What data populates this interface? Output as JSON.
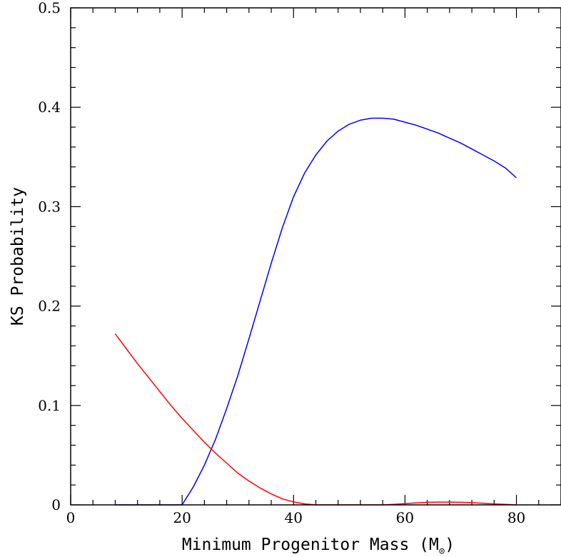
{
  "chart_data": {
    "type": "line",
    "title": "",
    "xlabel": "Minimum Progenitor Mass (M",
    "xlabel_unit_symbol": "⊙",
    "xlabel_close": ")",
    "ylabel": "KS Probability",
    "xlim": [
      0,
      88
    ],
    "ylim": [
      0,
      0.5
    ],
    "x_ticks": [
      0,
      20,
      40,
      60,
      80
    ],
    "x_tick_labels": [
      "0",
      "20",
      "40",
      "60",
      "80"
    ],
    "x_minor_step": 4,
    "y_ticks": [
      0,
      0.1,
      0.2,
      0.3,
      0.4,
      0.5
    ],
    "y_tick_labels": [
      "0",
      "0.1",
      "0.2",
      "0.3",
      "0.4",
      "0.5"
    ],
    "y_minor_step": 0.02,
    "grid": false,
    "series": [
      {
        "color": "#0000ff",
        "x": [
          8,
          12,
          16,
          20,
          22,
          24,
          26,
          28,
          30,
          32,
          34,
          36,
          38,
          40,
          42,
          44,
          46,
          48,
          50,
          52,
          54,
          56,
          58,
          60,
          62,
          64,
          66,
          68,
          70,
          72,
          74,
          76,
          78,
          80
        ],
        "y": [
          0,
          0,
          0,
          0,
          0.018,
          0.04,
          0.066,
          0.097,
          0.13,
          0.167,
          0.205,
          0.243,
          0.279,
          0.31,
          0.334,
          0.352,
          0.366,
          0.376,
          0.383,
          0.387,
          0.389,
          0.389,
          0.388,
          0.385,
          0.382,
          0.378,
          0.374,
          0.369,
          0.364,
          0.358,
          0.352,
          0.346,
          0.339,
          0.329
        ]
      },
      {
        "color": "#ff0000",
        "x": [
          8,
          10,
          12,
          14,
          16,
          18,
          20,
          22,
          24,
          26,
          28,
          30,
          32,
          34,
          36,
          38,
          40,
          42,
          44,
          46,
          48,
          50,
          52,
          54,
          56,
          58,
          60,
          62,
          64,
          66,
          68,
          70,
          72,
          74,
          76,
          78,
          80
        ],
        "y": [
          0.172,
          0.157,
          0.142,
          0.128,
          0.114,
          0.1,
          0.087,
          0.075,
          0.063,
          0.052,
          0.042,
          0.032,
          0.024,
          0.017,
          0.011,
          0.006,
          0.003,
          0.001,
          0.0,
          0.0,
          0.0,
          0.0,
          0.0,
          0.0,
          0.0,
          0.0005,
          0.0012,
          0.002,
          0.0026,
          0.0028,
          0.0028,
          0.0026,
          0.0022,
          0.0016,
          0.001,
          0.0005,
          0.0
        ]
      }
    ]
  }
}
